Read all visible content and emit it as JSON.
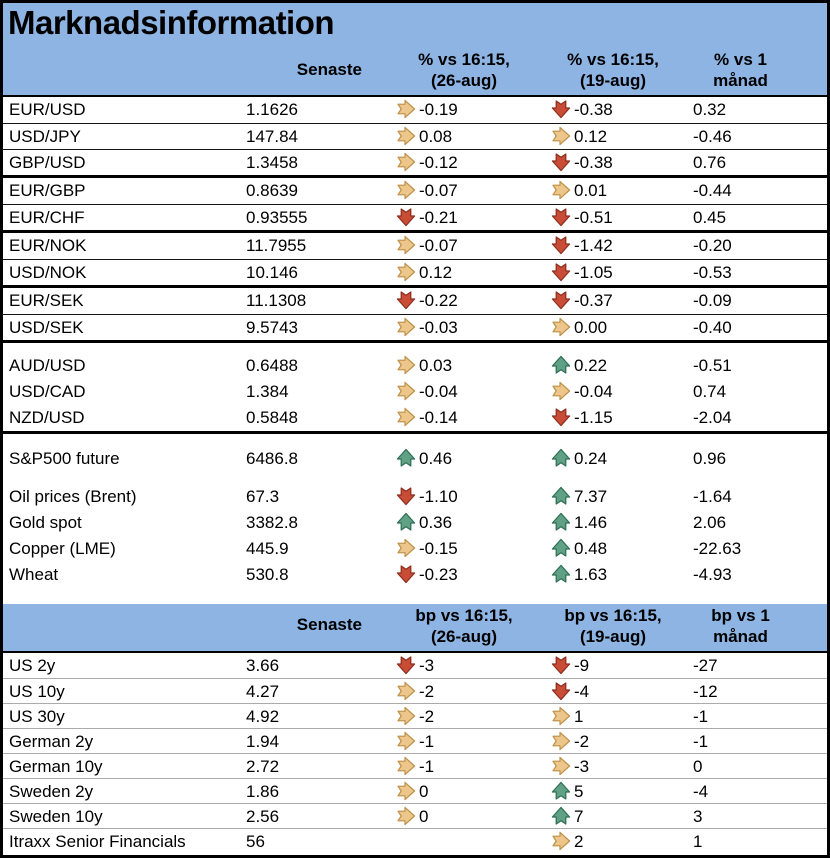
{
  "title": "Marknadsinformation",
  "colors": {
    "header_bg": "#8DB4E2",
    "arrow_up_fill": "#60A085",
    "arrow_up_stroke": "#2E6E54",
    "arrow_right_fill": "#ECC68A",
    "arrow_right_stroke": "#BE9148",
    "arrow_down_fill": "#C94D36",
    "arrow_down_stroke": "#8C2D1E"
  },
  "pct_header": {
    "senaste": "Senaste",
    "col_26aug_line1": "% vs 16:15,",
    "col_26aug_line2": "(26-aug)",
    "col_19aug_line1": "% vs 16:15,",
    "col_19aug_line2": "(19-aug)",
    "col_month_line1": "% vs 1",
    "col_month_line2": "månad"
  },
  "bp_header": {
    "senaste": "Senaste",
    "col_26aug_line1": "bp vs 16:15,",
    "col_26aug_line2": "(26-aug)",
    "col_19aug_line1": "bp vs 16:15,",
    "col_19aug_line2": "(19-aug)",
    "col_month_line1": "bp vs 1",
    "col_month_line2": "månad"
  },
  "sections": {
    "fx_majors": [
      {
        "label": "EUR/USD",
        "senaste": "1.1626",
        "vs_26aug": {
          "trend": "right",
          "value": "-0.19"
        },
        "vs_19aug": {
          "trend": "down",
          "value": "-0.38"
        },
        "vs_1m": "0.32"
      },
      {
        "label": "USD/JPY",
        "senaste": "147.84",
        "vs_26aug": {
          "trend": "right",
          "value": "0.08"
        },
        "vs_19aug": {
          "trend": "right",
          "value": "0.12"
        },
        "vs_1m": "-0.46"
      },
      {
        "label": "GBP/USD",
        "senaste": "1.3458",
        "vs_26aug": {
          "trend": "right",
          "value": "-0.12"
        },
        "vs_19aug": {
          "trend": "down",
          "value": "-0.38"
        },
        "vs_1m": "0.76"
      }
    ],
    "fx_eur_crosses": [
      {
        "label": "EUR/GBP",
        "senaste": "0.8639",
        "vs_26aug": {
          "trend": "right",
          "value": "-0.07"
        },
        "vs_19aug": {
          "trend": "right",
          "value": "0.01"
        },
        "vs_1m": "-0.44"
      },
      {
        "label": "EUR/CHF",
        "senaste": "0.93555",
        "vs_26aug": {
          "trend": "down",
          "value": "-0.21"
        },
        "vs_19aug": {
          "trend": "down",
          "value": "-0.51"
        },
        "vs_1m": "0.45"
      }
    ],
    "fx_nok": [
      {
        "label": "EUR/NOK",
        "senaste": "11.7955",
        "vs_26aug": {
          "trend": "right",
          "value": "-0.07"
        },
        "vs_19aug": {
          "trend": "down",
          "value": "-1.42"
        },
        "vs_1m": "-0.20"
      },
      {
        "label": "USD/NOK",
        "senaste": "10.146",
        "vs_26aug": {
          "trend": "right",
          "value": "0.12"
        },
        "vs_19aug": {
          "trend": "down",
          "value": "-1.05"
        },
        "vs_1m": "-0.53"
      }
    ],
    "fx_sek": [
      {
        "label": "EUR/SEK",
        "senaste": "11.1308",
        "vs_26aug": {
          "trend": "down",
          "value": "-0.22"
        },
        "vs_19aug": {
          "trend": "down",
          "value": "-0.37"
        },
        "vs_1m": "-0.09"
      },
      {
        "label": "USD/SEK",
        "senaste": "9.5743",
        "vs_26aug": {
          "trend": "right",
          "value": "-0.03"
        },
        "vs_19aug": {
          "trend": "right",
          "value": "0.00"
        },
        "vs_1m": "-0.40"
      }
    ],
    "fx_other": [
      {
        "label": "AUD/USD",
        "senaste": "0.6488",
        "vs_26aug": {
          "trend": "right",
          "value": "0.03"
        },
        "vs_19aug": {
          "trend": "up",
          "value": "0.22"
        },
        "vs_1m": "-0.51"
      },
      {
        "label": "USD/CAD",
        "senaste": "1.384",
        "vs_26aug": {
          "trend": "right",
          "value": "-0.04"
        },
        "vs_19aug": {
          "trend": "right",
          "value": "-0.04"
        },
        "vs_1m": "0.74"
      },
      {
        "label": "NZD/USD",
        "senaste": "0.5848",
        "vs_26aug": {
          "trend": "right",
          "value": "-0.14"
        },
        "vs_19aug": {
          "trend": "down",
          "value": "-1.15"
        },
        "vs_1m": "-2.04"
      }
    ],
    "equity": [
      {
        "label": "S&P500 future",
        "senaste": "6486.8",
        "vs_26aug": {
          "trend": "up",
          "value": "0.46"
        },
        "vs_19aug": {
          "trend": "up",
          "value": "0.24"
        },
        "vs_1m": "0.96"
      }
    ],
    "commodities": [
      {
        "label": "Oil prices (Brent)",
        "senaste": "67.3",
        "vs_26aug": {
          "trend": "down",
          "value": "-1.10"
        },
        "vs_19aug": {
          "trend": "up",
          "value": "7.37"
        },
        "vs_1m": "-1.64"
      },
      {
        "label": "Gold spot",
        "senaste": "3382.8",
        "vs_26aug": {
          "trend": "up",
          "value": "0.36"
        },
        "vs_19aug": {
          "trend": "up",
          "value": "1.46"
        },
        "vs_1m": "2.06"
      },
      {
        "label": "Copper (LME)",
        "senaste": "445.9",
        "vs_26aug": {
          "trend": "right",
          "value": "-0.15"
        },
        "vs_19aug": {
          "trend": "up",
          "value": "0.48"
        },
        "vs_1m": "-22.63"
      },
      {
        "label": "Wheat",
        "senaste": "530.8",
        "vs_26aug": {
          "trend": "down",
          "value": "-0.23"
        },
        "vs_19aug": {
          "trend": "up",
          "value": "1.63"
        },
        "vs_1m": "-4.93"
      }
    ],
    "rates": [
      {
        "label": "US 2y",
        "senaste": "3.66",
        "vs_26aug": {
          "trend": "down",
          "value": "-3"
        },
        "vs_19aug": {
          "trend": "down",
          "value": "-9"
        },
        "vs_1m": "-27"
      },
      {
        "label": "US 10y",
        "senaste": "4.27",
        "vs_26aug": {
          "trend": "right",
          "value": "-2"
        },
        "vs_19aug": {
          "trend": "down",
          "value": "-4"
        },
        "vs_1m": "-12"
      },
      {
        "label": "US 30y",
        "senaste": "4.92",
        "vs_26aug": {
          "trend": "right",
          "value": "-2"
        },
        "vs_19aug": {
          "trend": "right",
          "value": "1"
        },
        "vs_1m": "-1"
      },
      {
        "label": "German 2y",
        "senaste": "1.94",
        "vs_26aug": {
          "trend": "right",
          "value": "-1"
        },
        "vs_19aug": {
          "trend": "right",
          "value": "-2"
        },
        "vs_1m": "-1"
      },
      {
        "label": "German 10y",
        "senaste": "2.72",
        "vs_26aug": {
          "trend": "right",
          "value": "-1"
        },
        "vs_19aug": {
          "trend": "right",
          "value": "-3"
        },
        "vs_1m": "0"
      },
      {
        "label": "Sweden 2y",
        "senaste": "1.86",
        "vs_26aug": {
          "trend": "right",
          "value": "0"
        },
        "vs_19aug": {
          "trend": "up",
          "value": "5"
        },
        "vs_1m": "-4"
      },
      {
        "label": "Sweden 10y",
        "senaste": "2.56",
        "vs_26aug": {
          "trend": "right",
          "value": "0"
        },
        "vs_19aug": {
          "trend": "up",
          "value": "7"
        },
        "vs_1m": "3"
      },
      {
        "label": "Itraxx Senior Financials",
        "senaste": "56",
        "vs_26aug": null,
        "vs_19aug": {
          "trend": "right",
          "value": "2"
        },
        "vs_1m": "1"
      }
    ]
  }
}
